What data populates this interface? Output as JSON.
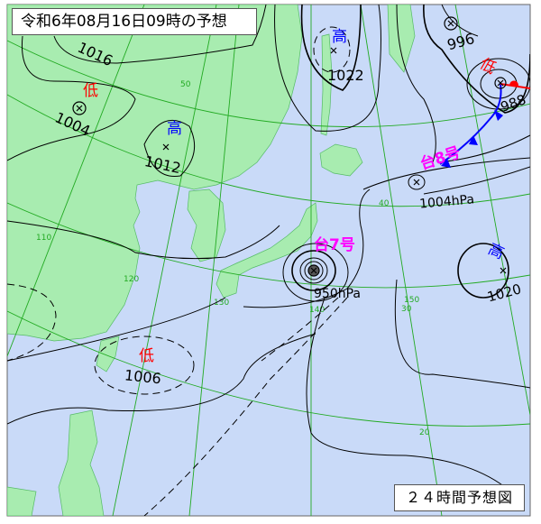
{
  "header": {
    "title": "令和6年08月16日09時の予想"
  },
  "footer": {
    "forecast_label": "２４時間予想図"
  },
  "colors": {
    "sea": "#c9daf8",
    "land": "#a8ecb0",
    "grid": "#22aa22",
    "isobar": "#000000",
    "high": "#0000ff",
    "low": "#ff0000",
    "typhoon": "#ff00ff",
    "cold_front": "#0000ff",
    "warm_front": "#ff0000"
  },
  "systems": {
    "low_nw": {
      "symbol": "低",
      "pressure": "1004"
    },
    "high_manchuria": {
      "symbol": "高",
      "pressure": "1012"
    },
    "high_okhotsk": {
      "symbol": "高",
      "pressure": "1022"
    },
    "low_ne_1": {
      "symbol": "低",
      "pressure": "996"
    },
    "low_ne_2": {
      "symbol": "低",
      "pressure": "988"
    },
    "typhoon8": {
      "label": "台8号",
      "pressure": "1004hPa"
    },
    "typhoon7": {
      "label": "台7号",
      "pressure": "950hPa"
    },
    "high_pacific": {
      "symbol": "高",
      "pressure": "1020"
    },
    "low_taiwan": {
      "symbol": "低",
      "pressure": "1006"
    }
  },
  "isobar_labels": [
    "1016"
  ],
  "grid_labels": {
    "lat": [
      "50",
      "40",
      "30",
      "20"
    ],
    "lon": [
      "110",
      "120",
      "130",
      "140",
      "150"
    ]
  }
}
